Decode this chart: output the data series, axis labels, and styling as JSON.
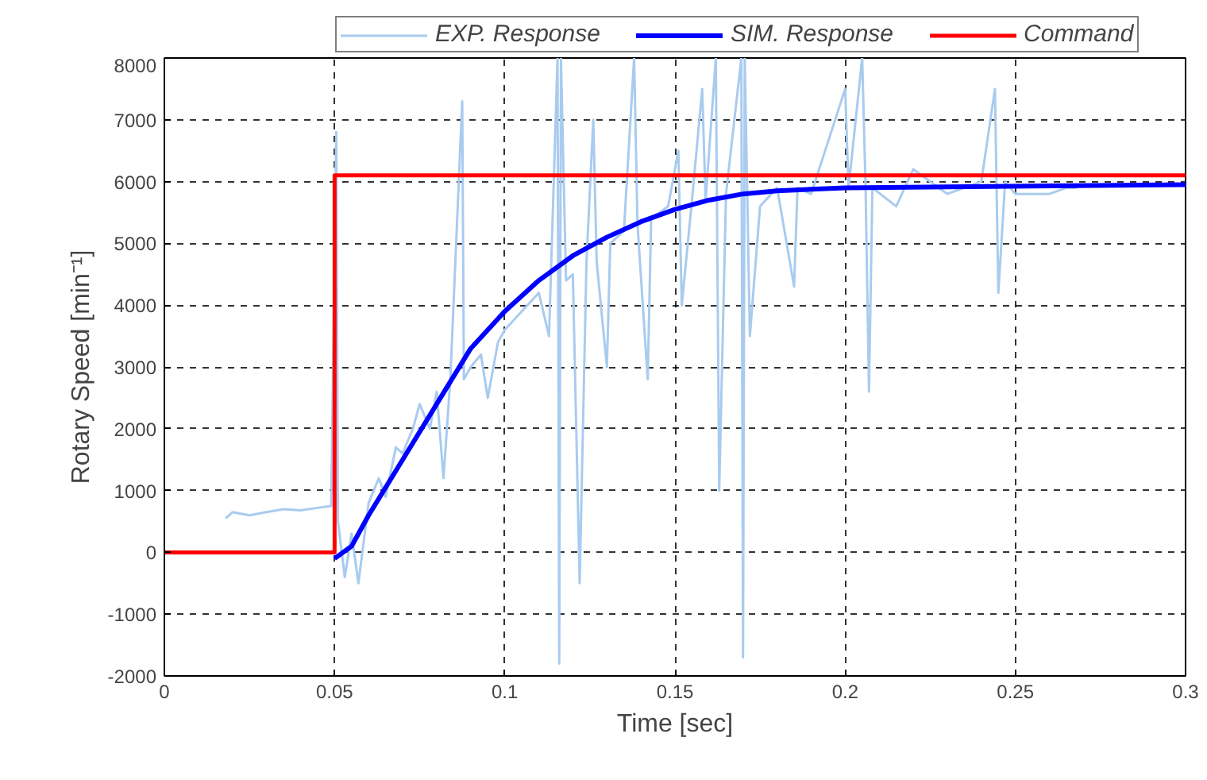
{
  "chart_data": {
    "type": "line",
    "xlabel": "Time [sec]",
    "ylabel": "Rotary Speed [min⁻¹]",
    "xlim": [
      0,
      0.3
    ],
    "ylim": [
      -2000,
      8000
    ],
    "xticks": [
      0,
      0.05,
      0.1,
      0.15,
      0.2,
      0.25,
      0.3
    ],
    "yticks": [
      -2000,
      -1000,
      0,
      1000,
      2000,
      3000,
      4000,
      5000,
      6000,
      7000,
      8000
    ],
    "grid": true,
    "legend": "top",
    "line_style": "solid",
    "marker": "none",
    "series": [
      {
        "name": "EXP. Response",
        "color": "#a9cbef",
        "x": [
          0.018,
          0.02,
          0.025,
          0.03,
          0.035,
          0.04,
          0.045,
          0.049,
          0.0505,
          0.051,
          0.053,
          0.055,
          0.057,
          0.06,
          0.063,
          0.065,
          0.068,
          0.07,
          0.073,
          0.075,
          0.078,
          0.08,
          0.082,
          0.084,
          0.0875,
          0.088,
          0.09,
          0.093,
          0.095,
          0.098,
          0.1,
          0.105,
          0.11,
          0.113,
          0.1155,
          0.116,
          0.1165,
          0.118,
          0.12,
          0.122,
          0.124,
          0.126,
          0.127,
          0.13,
          0.131,
          0.135,
          0.138,
          0.139,
          0.142,
          0.143,
          0.148,
          0.151,
          0.152,
          0.155,
          0.158,
          0.159,
          0.162,
          0.163,
          0.165,
          0.1695,
          0.17,
          0.1705,
          0.172,
          0.175,
          0.18,
          0.185,
          0.186,
          0.19,
          0.2,
          0.201,
          0.205,
          0.206,
          0.207,
          0.208,
          0.215,
          0.22,
          0.23,
          0.24,
          0.244,
          0.245,
          0.247,
          0.25,
          0.26,
          0.265,
          0.268
        ],
        "values": [
          550,
          650,
          600,
          650,
          700,
          680,
          720,
          750,
          6800,
          500,
          -400,
          300,
          -500,
          800,
          1200,
          900,
          1700,
          1600,
          2000,
          2400,
          2000,
          2600,
          1200,
          2800,
          7300,
          2800,
          3000,
          3200,
          2500,
          3400,
          3600,
          3900,
          4200,
          3500,
          8000,
          -1800,
          8000,
          4400,
          4500,
          -500,
          4700,
          7000,
          4700,
          3000,
          5000,
          5200,
          8000,
          5300,
          2800,
          5400,
          5600,
          6500,
          4000,
          5700,
          7500,
          5700,
          8000,
          1000,
          5800,
          8000,
          -1700,
          8000,
          3500,
          5600,
          5900,
          4300,
          5900,
          5800,
          7500,
          5900,
          8000,
          5900,
          2600,
          5900,
          5600,
          6200,
          5800,
          6000,
          7500,
          4200,
          6000,
          5800,
          5800,
          5900,
          5900
        ]
      },
      {
        "name": "SIM. Response",
        "color": "#0000ff",
        "x": [
          0.05,
          0.055,
          0.06,
          0.07,
          0.08,
          0.09,
          0.1,
          0.11,
          0.12,
          0.13,
          0.14,
          0.15,
          0.16,
          0.17,
          0.18,
          0.2,
          0.3
        ],
        "values": [
          -100,
          100,
          600,
          1500,
          2400,
          3300,
          3900,
          4400,
          4800,
          5100,
          5350,
          5550,
          5700,
          5800,
          5850,
          5900,
          5950
        ]
      },
      {
        "name": "Command",
        "color": "#ff0000",
        "x": [
          0,
          0.05,
          0.05,
          0.3
        ],
        "values": [
          0,
          0,
          6100,
          6100
        ]
      }
    ]
  }
}
